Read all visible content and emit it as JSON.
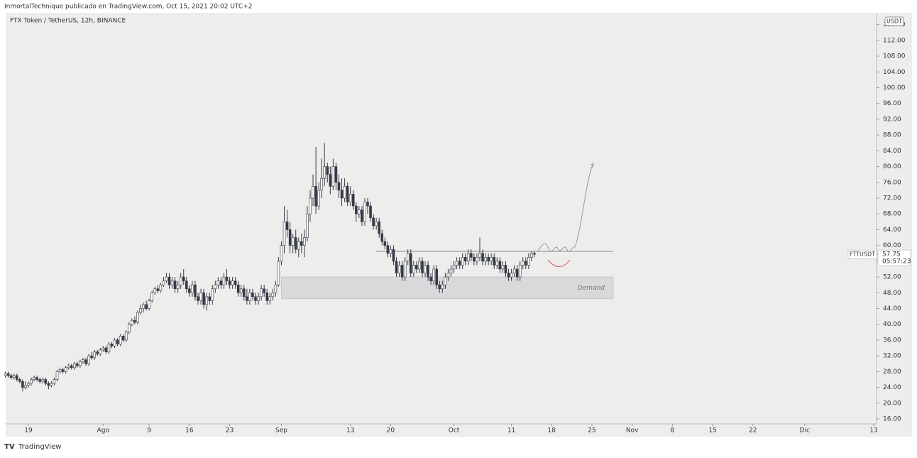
{
  "header": "InmortalTechnique publicado en TradingView.com, Oct 15, 2021 20:02 UTC+2",
  "footer": "TradingView",
  "chart_data": {
    "type": "candlestick",
    "title": "FTX Token / TetherUS, 12h, BINANCE",
    "currency": "USDT",
    "symbol": "FTTUSDT",
    "last_price": 57.75,
    "countdown": "05:57:23",
    "level": 58.5,
    "zone": [
      46.5,
      52
    ],
    "zone_label": "Demand",
    "up_color": "#ffffff",
    "down_color": "#363a45",
    "xlim": [
      -3.95,
      147.5
    ],
    "ylim": [
      14.74,
      119.0
    ],
    "yticks": [
      16,
      20,
      24,
      28,
      32,
      36,
      40,
      44,
      48,
      52,
      56,
      60,
      64,
      68,
      72,
      76,
      80,
      84,
      88,
      92,
      96,
      100,
      104,
      108,
      112,
      116
    ],
    "ytick_labels": [
      "16.00",
      "20.00",
      "24.00",
      "28.00",
      "32.00",
      "36.00",
      "40.00",
      "44.00",
      "48.00",
      "52.00",
      "56.00",
      "60.00",
      "64.00",
      "68.00",
      "72.00",
      "76.00",
      "80.00",
      "84.00",
      "88.00",
      "92.00",
      "96.00",
      "100.00",
      "104.00",
      "108.00",
      "112.00",
      "116.00"
    ],
    "xticks": [
      {
        "value": 0,
        "label": "19"
      },
      {
        "value": 13,
        "label": "Ago"
      },
      {
        "value": 21,
        "label": "9"
      },
      {
        "value": 28,
        "label": "16"
      },
      {
        "value": 35,
        "label": "23"
      },
      {
        "value": 44,
        "label": "Sep"
      },
      {
        "value": 56,
        "label": "13"
      },
      {
        "value": 63,
        "label": "20"
      },
      {
        "value": 74,
        "label": "Oct"
      },
      {
        "value": 84,
        "label": "11"
      },
      {
        "value": 91,
        "label": "18"
      },
      {
        "value": 98,
        "label": "25"
      },
      {
        "value": 105,
        "label": "Nov"
      },
      {
        "value": 112,
        "label": "8"
      },
      {
        "value": 119,
        "label": "15"
      },
      {
        "value": 126,
        "label": "22"
      },
      {
        "value": 135,
        "label": "Dic"
      },
      {
        "value": 147,
        "label": "13"
      }
    ],
    "x": [
      -4,
      -3.5,
      -3,
      -2.5,
      -2,
      -1.5,
      -1,
      -0.5,
      0,
      0.5,
      1,
      1.5,
      2,
      2.5,
      3,
      3.5,
      4,
      4.5,
      5,
      5.5,
      6,
      6.5,
      7,
      7.5,
      8,
      8.5,
      9,
      9.5,
      10,
      10.5,
      11,
      11.5,
      12,
      12.5,
      13,
      13.5,
      14,
      14.5,
      15,
      15.5,
      16,
      16.5,
      17,
      17.5,
      18,
      18.5,
      19,
      19.5,
      20,
      20.5,
      21,
      21.5,
      22,
      22.5,
      23,
      23.5,
      24,
      24.5,
      25,
      25.5,
      26,
      26.5,
      27,
      27.5,
      28,
      28.5,
      29,
      29.5,
      30,
      30.5,
      31,
      31.5,
      32,
      32.5,
      33,
      33.5,
      34,
      34.5,
      35,
      35.5,
      36,
      36.5,
      37,
      37.5,
      38,
      38.5,
      39,
      39.5,
      40,
      40.5,
      41,
      41.5,
      42,
      42.5,
      43,
      43.5,
      44,
      44.5,
      45,
      45.5,
      46,
      46.5,
      47,
      47.5,
      48,
      48.5,
      49,
      49.5,
      50,
      50.5,
      51,
      51.5,
      52,
      52.5,
      53,
      53.5,
      54,
      54.5,
      55,
      55.5,
      56,
      56.5,
      57,
      57.5,
      58,
      58.5,
      59,
      59.5,
      60,
      60.5,
      61,
      61.5,
      62,
      62.5,
      63,
      63.5,
      64,
      64.5,
      65,
      65.5,
      66,
      66.5,
      67,
      67.5,
      68,
      68.5,
      69,
      69.5,
      70,
      70.5,
      71,
      71.5,
      72,
      72.5,
      73,
      73.5,
      74,
      74.5,
      75,
      75.5,
      76,
      76.5,
      77,
      77.5,
      78,
      78.5,
      79,
      79.5,
      80,
      80.5,
      81,
      81.5,
      82,
      82.5,
      83,
      83.5,
      84,
      84.5,
      85,
      85.5,
      86,
      86.5,
      87,
      87.5,
      88
    ],
    "open": [
      27,
      27.5,
      27,
      26.5,
      27,
      26,
      25.5,
      24,
      24.5,
      25,
      26,
      26.5,
      26,
      25.5,
      26,
      25,
      24.5,
      25,
      26,
      28,
      28.5,
      28,
      29,
      29.5,
      29,
      30,
      29.5,
      30.5,
      31,
      30,
      32,
      31.5,
      33,
      32.5,
      33.5,
      34,
      33,
      35,
      34.5,
      36,
      35,
      37,
      36,
      38,
      40,
      41,
      40.5,
      43,
      44,
      45,
      44,
      46,
      48,
      49,
      48.5,
      50,
      51,
      52,
      50,
      51,
      49,
      50,
      52,
      51,
      49,
      48,
      50,
      47,
      46,
      48,
      45,
      47,
      46,
      49,
      50,
      51,
      50,
      52,
      51,
      50,
      51,
      50,
      48,
      49,
      47,
      46,
      48,
      47,
      46,
      47,
      49,
      48,
      46,
      47,
      48,
      50,
      56,
      60,
      66,
      64,
      60,
      62,
      59,
      61,
      60,
      62,
      68,
      72,
      75,
      70,
      74,
      77,
      80,
      78,
      75,
      80,
      76,
      74,
      72,
      75,
      71,
      73,
      70,
      68,
      69,
      66,
      71,
      70,
      67,
      65,
      66,
      63,
      61,
      60,
      58,
      59,
      56,
      53,
      55,
      52,
      56,
      58,
      53,
      55,
      54,
      56,
      53,
      55,
      52,
      51,
      54,
      50,
      49,
      50,
      52,
      53,
      54,
      55,
      56,
      55,
      57,
      56,
      58,
      57,
      56,
      57,
      58,
      56,
      57,
      56,
      57,
      55,
      56,
      54,
      55,
      53,
      52,
      53,
      54,
      52,
      55,
      56,
      55,
      57,
      58
    ],
    "high": [
      28,
      28,
      27.5,
      27.5,
      27.5,
      26.5,
      26,
      25.5,
      25.5,
      26.5,
      27,
      27,
      26.5,
      26.5,
      26.5,
      25.5,
      25.5,
      26.5,
      28.5,
      29,
      29,
      29.5,
      30,
      30,
      30.5,
      30.5,
      31,
      31.5,
      31.5,
      32.5,
      33,
      33.5,
      33.5,
      34,
      34.5,
      34.5,
      35.5,
      35.5,
      36.5,
      36.5,
      37.5,
      37.5,
      38.5,
      40.5,
      41.5,
      42,
      43.5,
      45,
      45.5,
      46,
      46.5,
      48.5,
      49.5,
      50,
      50.5,
      52,
      53,
      53,
      52,
      52,
      51,
      53,
      54,
      52,
      50,
      51,
      51,
      48,
      49,
      49,
      48,
      48,
      50,
      51,
      52,
      52,
      53,
      54,
      52,
      52,
      52,
      51,
      50,
      50,
      49,
      49,
      49,
      48,
      48,
      50,
      50,
      49,
      48,
      49,
      51,
      57,
      61,
      70,
      69,
      66,
      63,
      64,
      62,
      63,
      64,
      70,
      74,
      78,
      85,
      76,
      82,
      86,
      81,
      80,
      82,
      81,
      78,
      77,
      77,
      76,
      75,
      74,
      71,
      70,
      70,
      72,
      72,
      71,
      68,
      67,
      67,
      64,
      62,
      61,
      60,
      60,
      57,
      56,
      56,
      57,
      59,
      59,
      56,
      56,
      57,
      57,
      56,
      56,
      53,
      55,
      55,
      51,
      51,
      53,
      54,
      55,
      56,
      57,
      57,
      58,
      58,
      59,
      59,
      58,
      58,
      62,
      59,
      58,
      58,
      58,
      58,
      57,
      57,
      56,
      56,
      54,
      54,
      55,
      55,
      56,
      57,
      57,
      58,
      58.5,
      58.5
    ],
    "low": [
      26.5,
      26.5,
      26,
      26,
      25.5,
      25,
      23,
      23.5,
      24,
      24.5,
      25.5,
      25.5,
      25,
      25,
      24.5,
      23.5,
      24,
      24.5,
      25.5,
      27.5,
      27.5,
      27.5,
      28.5,
      28.5,
      28.5,
      29,
      29,
      30,
      29.5,
      29.5,
      31,
      31,
      32,
      32,
      33,
      32.5,
      32.5,
      34,
      34,
      34.5,
      34.5,
      35.5,
      35.5,
      37.5,
      39.5,
      40,
      40,
      42.5,
      43,
      43.5,
      43.5,
      45.5,
      47.5,
      48,
      48,
      49.5,
      50.5,
      49,
      49,
      48,
      48,
      49,
      50,
      48,
      47,
      47,
      46,
      45,
      45,
      44,
      43.5,
      45,
      45,
      48,
      49,
      49,
      49,
      50,
      49,
      49,
      49,
      47,
      47,
      46,
      45,
      45,
      46,
      45,
      45,
      46,
      47,
      45,
      45,
      46,
      47,
      49.5,
      55,
      58,
      62,
      58,
      58,
      58,
      57,
      58,
      57,
      61,
      66,
      70,
      68,
      69,
      72,
      75,
      76,
      73,
      74,
      74,
      72,
      70,
      71,
      70,
      70,
      69,
      66,
      67,
      65,
      65,
      68,
      66,
      64,
      64,
      62,
      60,
      59,
      57,
      57,
      55,
      52,
      52,
      51,
      51,
      55,
      52,
      52,
      53,
      53,
      52,
      52,
      51,
      50,
      50,
      49,
      48,
      48,
      49,
      51,
      52,
      53,
      54,
      54,
      54,
      55,
      55,
      56,
      55,
      55,
      56,
      55,
      55,
      55,
      55,
      54,
      54,
      53,
      53,
      52,
      51,
      51,
      52,
      51,
      51,
      54,
      54,
      54,
      56,
      57
    ],
    "close": [
      27.5,
      27,
      26.5,
      27,
      26,
      25.5,
      24,
      24.5,
      25,
      26,
      26.5,
      26,
      25.5,
      26,
      25,
      24.5,
      25,
      26,
      28,
      28.5,
      28,
      29,
      29.5,
      29,
      30,
      29.5,
      30.5,
      31,
      30,
      32,
      31.5,
      33,
      32.5,
      33.5,
      34,
      33,
      35,
      34.5,
      36,
      35,
      37,
      36,
      38,
      40,
      41,
      40.5,
      43,
      44,
      45,
      44,
      46,
      48,
      49,
      48.5,
      50,
      51,
      52,
      50,
      51,
      49,
      50,
      52,
      51,
      49,
      48,
      50,
      47,
      46,
      48,
      45,
      47,
      46,
      49,
      50,
      51,
      50,
      52,
      51,
      50,
      51,
      50,
      48,
      49,
      47,
      46,
      48,
      47,
      46,
      47,
      49,
      48,
      46,
      47,
      48,
      50,
      56,
      60,
      66,
      64,
      60,
      62,
      59,
      61,
      60,
      62,
      68,
      72,
      75,
      70,
      74,
      77,
      80,
      78,
      75,
      80,
      76,
      74,
      72,
      75,
      71,
      73,
      70,
      68,
      69,
      66,
      71,
      70,
      67,
      65,
      66,
      63,
      61,
      60,
      58,
      59,
      56,
      53,
      55,
      52,
      56,
      58,
      53,
      55,
      54,
      56,
      53,
      55,
      52,
      51,
      54,
      50,
      49,
      50,
      52,
      53,
      54,
      55,
      56,
      55,
      57,
      56,
      58,
      57,
      56,
      57,
      58,
      56,
      57,
      56,
      57,
      55,
      56,
      54,
      55,
      53,
      52,
      53,
      54,
      52,
      55,
      56,
      55,
      57,
      58,
      57.75
    ]
  }
}
